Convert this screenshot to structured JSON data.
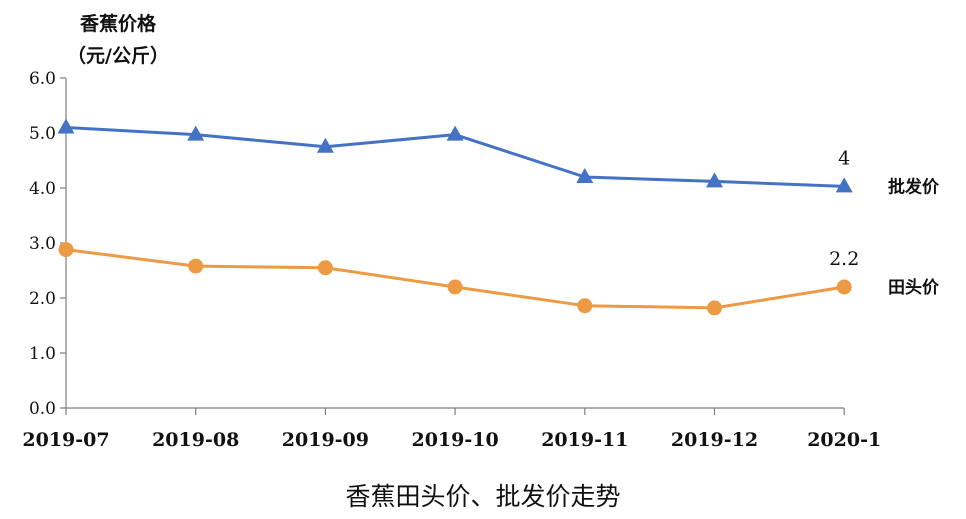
{
  "chart_data": {
    "type": "line",
    "title": "香蕉田头价、批发价走势",
    "ylabel_line1": "香蕉价格",
    "ylabel_line2": "（元/公斤）",
    "xlabel": "",
    "categories": [
      "2019-07",
      "2019-08",
      "2019-09",
      "2019-10",
      "2019-11",
      "2019-12",
      "2020-1"
    ],
    "ylim": [
      0,
      6
    ],
    "yticks": [
      "0.0",
      "1.0",
      "2.0",
      "3.0",
      "4.0",
      "5.0",
      "6.0"
    ],
    "grid": false,
    "legend": "inline-right",
    "series": [
      {
        "name": "批发价",
        "color": "#4472c4",
        "marker": "triangle",
        "values": [
          5.1,
          4.97,
          4.75,
          4.97,
          4.2,
          4.12,
          4.03
        ],
        "end_label": "4"
      },
      {
        "name": "田头价",
        "color": "#ed9a45",
        "marker": "circle",
        "values": [
          2.88,
          2.58,
          2.55,
          2.2,
          1.86,
          1.82,
          2.2
        ],
        "end_label": "2.2"
      }
    ]
  }
}
